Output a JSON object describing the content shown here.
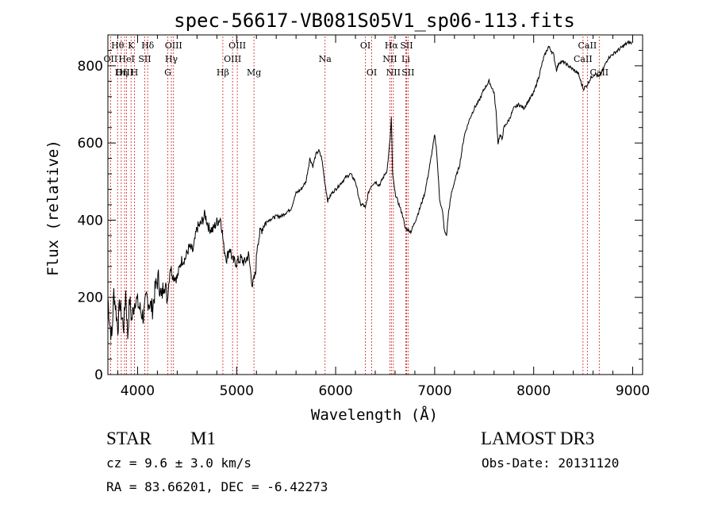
{
  "chart_data": {
    "type": "line",
    "title": "spec-56617-VB081S05V1_sp06-113.fits",
    "xlabel": "Wavelength (Å)",
    "ylabel": "Flux (relative)",
    "xlim": [
      3700,
      9100
    ],
    "ylim": [
      0,
      880
    ],
    "xticks": [
      4000,
      5000,
      6000,
      7000,
      8000,
      9000
    ],
    "xtick_labels": [
      "4000",
      "5000",
      "6000",
      "7000",
      "8000",
      "9000"
    ],
    "yticks": [
      0,
      200,
      400,
      600,
      800
    ],
    "ytick_labels": [
      "0",
      "200",
      "400",
      "600",
      "800"
    ],
    "grid": false,
    "series": [
      {
        "name": "spectrum",
        "x": [
          3700,
          3720,
          3740,
          3760,
          3780,
          3800,
          3820,
          3840,
          3860,
          3880,
          3900,
          3920,
          3940,
          3960,
          3980,
          4000,
          4030,
          4060,
          4090,
          4120,
          4150,
          4180,
          4210,
          4240,
          4270,
          4300,
          4330,
          4360,
          4400,
          4440,
          4480,
          4520,
          4560,
          4600,
          4640,
          4680,
          4720,
          4760,
          4800,
          4840,
          4870,
          4900,
          4930,
          4960,
          5000,
          5040,
          5080,
          5120,
          5160,
          5190,
          5210,
          5240,
          5280,
          5320,
          5360,
          5400,
          5450,
          5500,
          5550,
          5600,
          5650,
          5700,
          5740,
          5770,
          5800,
          5830,
          5860,
          5890,
          5920,
          5960,
          6000,
          6050,
          6100,
          6150,
          6200,
          6250,
          6280,
          6300,
          6330,
          6360,
          6400,
          6440,
          6480,
          6520,
          6550,
          6563,
          6575,
          6600,
          6640,
          6680,
          6700,
          6730,
          6760,
          6800,
          6850,
          6900,
          6950,
          7000,
          7020,
          7050,
          7080,
          7100,
          7120,
          7140,
          7170,
          7200,
          7250,
          7300,
          7350,
          7400,
          7450,
          7500,
          7550,
          7600,
          7620,
          7640,
          7660,
          7680,
          7700,
          7750,
          7800,
          7850,
          7900,
          7950,
          8000,
          8050,
          8100,
          8150,
          8200,
          8230,
          8260,
          8300,
          8350,
          8400,
          8450,
          8500,
          8540,
          8580,
          8620,
          8660,
          8700,
          8750,
          8800,
          8850,
          8900,
          8950,
          8990
        ],
        "values": [
          200,
          130,
          95,
          215,
          170,
          120,
          185,
          150,
          125,
          215,
          100,
          195,
          140,
          175,
          200,
          185,
          165,
          150,
          200,
          185,
          170,
          225,
          250,
          195,
          245,
          195,
          280,
          255,
          250,
          295,
          300,
          330,
          320,
          380,
          390,
          415,
          380,
          375,
          395,
          405,
          330,
          300,
          330,
          295,
          290,
          300,
          290,
          310,
          230,
          260,
          340,
          370,
          390,
          400,
          405,
          410,
          410,
          420,
          430,
          470,
          480,
          500,
          560,
          540,
          570,
          580,
          560,
          500,
          450,
          470,
          480,
          495,
          510,
          520,
          500,
          440,
          440,
          430,
          470,
          490,
          500,
          490,
          510,
          530,
          610,
          665,
          520,
          470,
          440,
          410,
          380,
          375,
          370,
          395,
          430,
          470,
          540,
          620,
          580,
          455,
          420,
          370,
          360,
          420,
          470,
          500,
          540,
          620,
          660,
          690,
          710,
          740,
          760,
          730,
          680,
          600,
          620,
          610,
          640,
          660,
          690,
          700,
          690,
          710,
          730,
          770,
          820,
          850,
          830,
          790,
          810,
          810,
          800,
          790,
          780,
          740,
          750,
          770,
          780,
          770,
          790,
          820,
          830,
          840,
          850,
          860,
          860
        ]
      }
    ],
    "line_markers": [
      {
        "label": "Hθ",
        "wave": 3798,
        "row": 0
      },
      {
        "label": "OII",
        "wave": 3727,
        "row": 1
      },
      {
        "label": "OIII",
        "wave": 3869,
        "row": 2
      },
      {
        "label": "K",
        "wave": 3934,
        "row": 0
      },
      {
        "label": "HeI",
        "wave": 3889,
        "row": 1
      },
      {
        "label": "Hη",
        "wave": 3835,
        "row": 2
      },
      {
        "label": "SII",
        "wave": 4072,
        "row": 1
      },
      {
        "label": "H",
        "wave": 3968,
        "row": 2
      },
      {
        "label": "Hδ",
        "wave": 4102,
        "row": 0
      },
      {
        "label": "OIII",
        "wave": 4363,
        "row": 0
      },
      {
        "label": "Hγ",
        "wave": 4341,
        "row": 1
      },
      {
        "label": "G",
        "wave": 4305,
        "row": 2
      },
      {
        "label": "Hβ",
        "wave": 4861,
        "row": 2
      },
      {
        "label": "OIII",
        "wave": 5007,
        "row": 0
      },
      {
        "label": "OIII",
        "wave": 4959,
        "row": 1
      },
      {
        "label": "Mg",
        "wave": 5175,
        "row": 2
      },
      {
        "label": "Na",
        "wave": 5893,
        "row": 1
      },
      {
        "label": "OI",
        "wave": 6300,
        "row": 0
      },
      {
        "label": "OI",
        "wave": 6364,
        "row": 2
      },
      {
        "label": "Hα",
        "wave": 6563,
        "row": 0
      },
      {
        "label": "NII",
        "wave": 6548,
        "row": 1
      },
      {
        "label": "NII",
        "wave": 6583,
        "row": 2
      },
      {
        "label": "SII",
        "wave": 6716,
        "row": 0
      },
      {
        "label": "Li",
        "wave": 6708,
        "row": 1
      },
      {
        "label": "SII",
        "wave": 6731,
        "row": 2
      },
      {
        "label": "CaII",
        "wave": 8542,
        "row": 0
      },
      {
        "label": "CaII",
        "wave": 8498,
        "row": 1
      },
      {
        "label": "CaII",
        "wave": 8662,
        "row": 2
      }
    ]
  },
  "info": {
    "object_class": "STAR",
    "subclass": "M1",
    "survey": "LAMOST DR3",
    "cz": "cz = 9.6 ± 3.0 km/s",
    "obs_date": "Obs-Date: 20131120",
    "coords": "RA =  83.66201, DEC =  -6.42273"
  },
  "colors": {
    "axis": "#000000",
    "spectrum": "#000000",
    "marker_line": "#cc2222",
    "background": "#ffffff"
  }
}
